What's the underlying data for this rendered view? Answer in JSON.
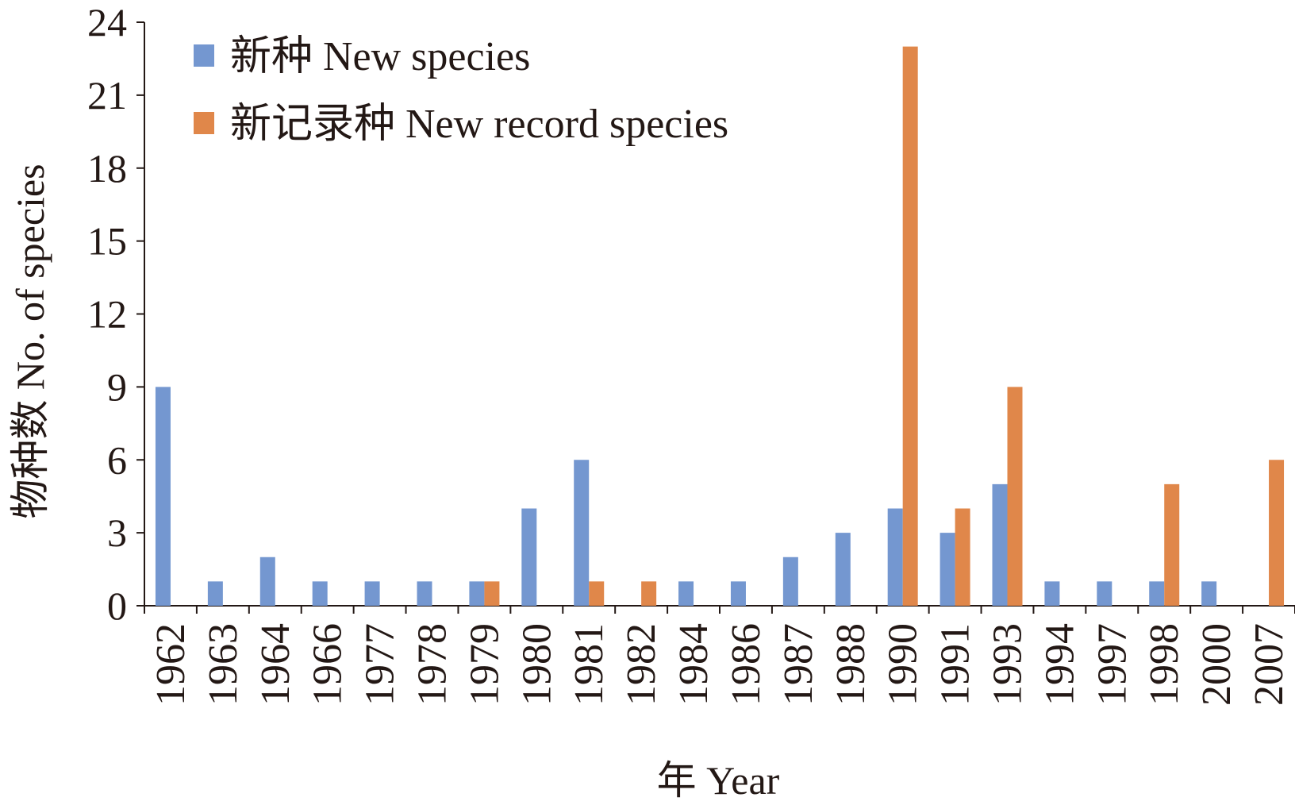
{
  "chart_data": {
    "type": "bar",
    "xlabel": "年 Year",
    "ylabel": "物种数 No. of species",
    "ylim": [
      0,
      24
    ],
    "yticks": [
      0,
      3,
      6,
      9,
      12,
      15,
      18,
      21,
      24
    ],
    "grid": false,
    "legend_position": "top-left",
    "categories": [
      "1962",
      "1963",
      "1964",
      "1966",
      "1977",
      "1978",
      "1979",
      "1980",
      "1981",
      "1982",
      "1984",
      "1986",
      "1987",
      "1988",
      "1990",
      "1991",
      "1993",
      "1994",
      "1997",
      "1998",
      "2000",
      "2007"
    ],
    "series": [
      {
        "name": "新种 New species",
        "color": "#7497d0",
        "values": [
          9,
          1,
          2,
          1,
          1,
          1,
          1,
          4,
          6,
          0,
          1,
          1,
          2,
          3,
          4,
          3,
          5,
          1,
          1,
          1,
          1,
          0
        ]
      },
      {
        "name": "新记录种 New record species",
        "color": "#e0874a",
        "values": [
          0,
          0,
          0,
          0,
          0,
          0,
          1,
          0,
          1,
          1,
          0,
          0,
          0,
          0,
          23,
          4,
          9,
          0,
          0,
          5,
          0,
          6
        ]
      }
    ]
  }
}
